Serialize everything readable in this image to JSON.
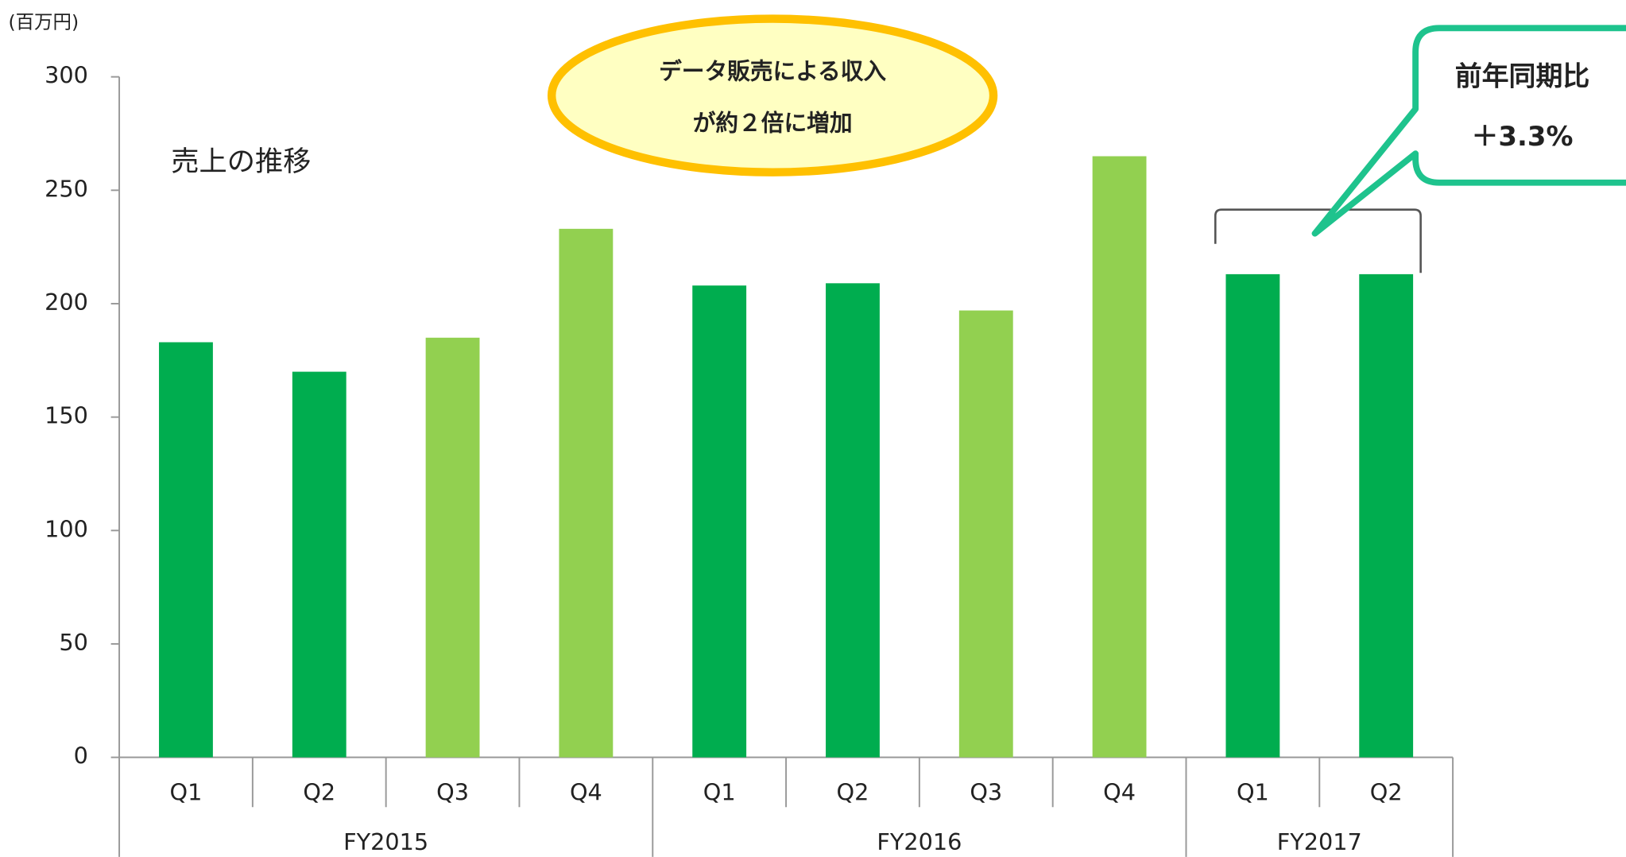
{
  "chart_data": {
    "type": "bar",
    "title": "売上の推移",
    "y_unit": "(百万円)",
    "groups": [
      {
        "name": "FY2015",
        "categories": [
          "Q1",
          "Q2",
          "Q3",
          "Q4"
        ]
      },
      {
        "name": "FY2016",
        "categories": [
          "Q1",
          "Q2",
          "Q3",
          "Q4"
        ]
      },
      {
        "name": "FY2017",
        "categories": [
          "Q1",
          "Q2"
        ]
      }
    ],
    "values": [
      183,
      170,
      185,
      233,
      208,
      209,
      197,
      265,
      213,
      213
    ],
    "colors": [
      "#00ad4f",
      "#00ad4f",
      "#92d050",
      "#92d050",
      "#00ad4f",
      "#00ad4f",
      "#92d050",
      "#92d050",
      "#00ad4f",
      "#00ad4f"
    ],
    "ylim": [
      0,
      300
    ],
    "yticks": [
      0,
      50,
      100,
      150,
      200,
      250,
      300
    ],
    "grid": false,
    "annotations": {
      "ellipse": [
        "データ販売による収入",
        "が約２倍に増加"
      ],
      "callout": [
        "前年同期比",
        "＋3.3%"
      ]
    }
  }
}
